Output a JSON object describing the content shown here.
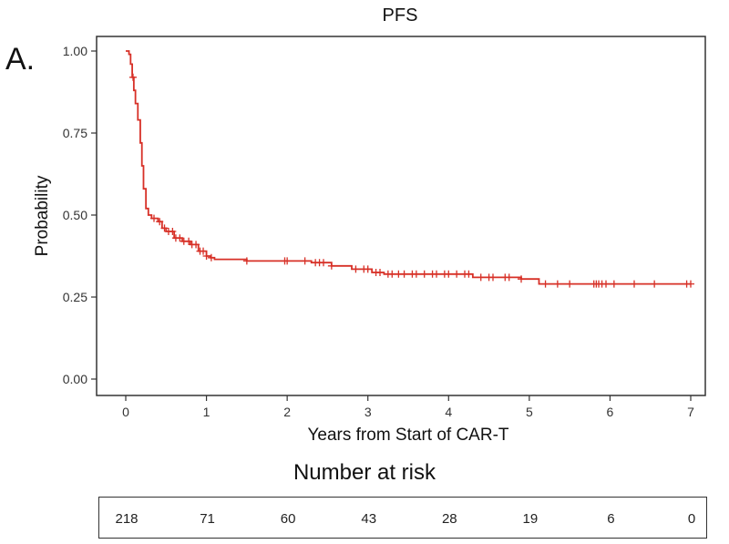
{
  "panel_label": "A.",
  "chart_data": {
    "type": "line",
    "title": "PFS",
    "xlabel": "Years from Start of CAR-T",
    "ylabel": "Probability",
    "xlim": [
      0,
      7
    ],
    "ylim": [
      0,
      1
    ],
    "x_ticks": [
      "0",
      "1",
      "2",
      "3",
      "4",
      "5",
      "6",
      "7"
    ],
    "y_ticks": [
      "0.00",
      "0.25",
      "0.50",
      "0.75",
      "1.00"
    ],
    "grid": false,
    "colors": {
      "curve": "#d73027",
      "axis": "#333333"
    },
    "series": [
      {
        "step_points": [
          [
            0,
            1.0
          ],
          [
            0.04,
            0.99
          ],
          [
            0.06,
            0.96
          ],
          [
            0.08,
            0.92
          ],
          [
            0.1,
            0.88
          ],
          [
            0.12,
            0.84
          ],
          [
            0.15,
            0.79
          ],
          [
            0.18,
            0.72
          ],
          [
            0.2,
            0.65
          ],
          [
            0.22,
            0.58
          ],
          [
            0.25,
            0.52
          ],
          [
            0.28,
            0.5
          ],
          [
            0.32,
            0.49
          ],
          [
            0.4,
            0.48
          ],
          [
            0.45,
            0.46
          ],
          [
            0.5,
            0.45
          ],
          [
            0.6,
            0.43
          ],
          [
            0.7,
            0.42
          ],
          [
            0.8,
            0.41
          ],
          [
            0.9,
            0.39
          ],
          [
            1.0,
            0.375
          ],
          [
            1.05,
            0.37
          ],
          [
            1.1,
            0.365
          ],
          [
            1.5,
            0.36
          ],
          [
            2.3,
            0.355
          ],
          [
            2.55,
            0.345
          ],
          [
            2.8,
            0.335
          ],
          [
            3.05,
            0.325
          ],
          [
            3.2,
            0.32
          ],
          [
            4.3,
            0.31
          ],
          [
            4.9,
            0.305
          ],
          [
            5.12,
            0.29
          ],
          [
            7.0,
            0.29
          ]
        ],
        "censor_x": [
          0.09,
          0.35,
          0.42,
          0.48,
          0.53,
          0.58,
          0.62,
          0.67,
          0.72,
          0.78,
          0.82,
          0.87,
          0.92,
          0.96,
          1.0,
          1.06,
          1.5,
          1.97,
          2.0,
          2.22,
          2.35,
          2.4,
          2.45,
          2.55,
          2.85,
          2.95,
          3.0,
          3.1,
          3.15,
          3.25,
          3.3,
          3.38,
          3.45,
          3.55,
          3.6,
          3.7,
          3.8,
          3.85,
          3.95,
          4.0,
          4.1,
          4.2,
          4.25,
          4.4,
          4.5,
          4.55,
          4.7,
          4.75,
          4.9,
          5.2,
          5.35,
          5.5,
          5.8,
          5.83,
          5.86,
          5.9,
          5.95,
          6.05,
          6.3,
          6.55,
          6.95,
          7.0
        ]
      }
    ]
  },
  "risk_table": {
    "title": "Number at risk",
    "times": [
      0,
      1,
      2,
      3,
      4,
      5,
      6,
      7
    ],
    "values": [
      "218",
      "71",
      "60",
      "43",
      "28",
      "19",
      "6",
      "0"
    ]
  }
}
